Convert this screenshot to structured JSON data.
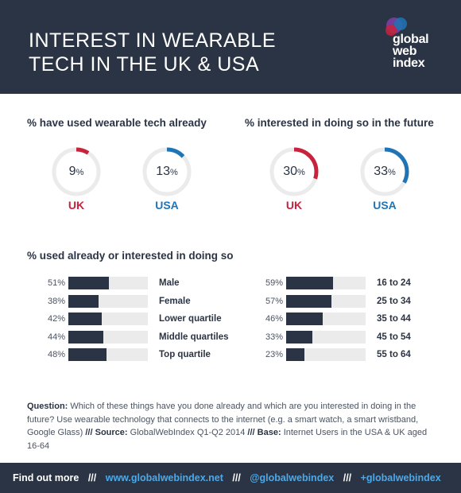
{
  "header": {
    "title_line1": "INTEREST IN WEARABLE",
    "title_line2": "TECH IN THE UK & USA",
    "logo": {
      "line1": "global",
      "line2": "web",
      "line3": "index"
    }
  },
  "colors": {
    "uk": "#c8223c",
    "usa": "#1f74b6",
    "dark": "#2b3444",
    "track": "#ebebeb"
  },
  "chart_data": [
    {
      "type": "pie",
      "title": "% have used wearable tech already",
      "categories": [
        "UK",
        "USA"
      ],
      "values": [
        9,
        13
      ],
      "value_labels": [
        "9",
        "13"
      ],
      "unit": "%"
    },
    {
      "type": "pie",
      "title": "% interested in doing so in the future",
      "categories": [
        "UK",
        "USA"
      ],
      "values": [
        30,
        33
      ],
      "value_labels": [
        "30",
        "33"
      ],
      "unit": "%"
    },
    {
      "type": "bar",
      "title": "% used already or interested in doing so",
      "categories": [
        "Male",
        "Female",
        "Lower quartile",
        "Middle quartiles",
        "Top quartile"
      ],
      "values": [
        51,
        38,
        42,
        44,
        48
      ],
      "value_labels": [
        "51%",
        "38%",
        "42%",
        "44%",
        "48%"
      ],
      "xlim": [
        0,
        100
      ]
    },
    {
      "type": "bar",
      "categories": [
        "16 to 24",
        "25 to 34",
        "35 to 44",
        "45 to 54",
        "55 to 64"
      ],
      "values": [
        59,
        57,
        46,
        33,
        23
      ],
      "value_labels": [
        "59%",
        "57%",
        "46%",
        "33%",
        "23%"
      ],
      "xlim": [
        0,
        100
      ]
    }
  ],
  "note": {
    "q_label": "Question:",
    "q_text": "Which of these things have you done already and which are you interested in doing in the future? Use wearable technology that connects to the internet (e.g. a smart watch, a smart wristband, Google Glass)",
    "sep": "///",
    "src_label": "Source:",
    "src_text": "GlobalWebIndex Q1-Q2 2014",
    "base_label": "Base:",
    "base_text": "Internet Users in the USA & UK aged 16-64"
  },
  "footer": {
    "find_out": "Find out more",
    "sep": "///",
    "website": "www.globalwebindex.net",
    "twitter": "@globalwebindex",
    "gplus": "+globalwebindex"
  }
}
